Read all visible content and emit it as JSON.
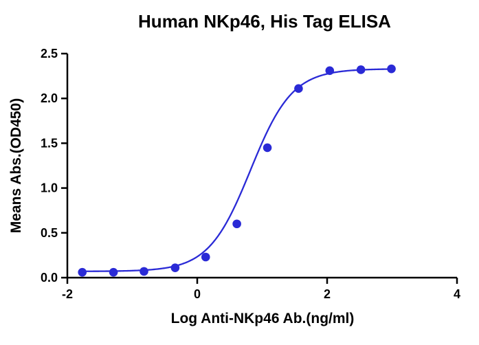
{
  "chart_data": {
    "type": "scatter",
    "title": "Human NKp46, His Tag ELISA",
    "xlabel": "Log Anti-NKp46 Ab.(ng/ml)",
    "ylabel": "Means Abs.(OD450)",
    "xlim": [
      -2,
      4
    ],
    "ylim": [
      0,
      2.5
    ],
    "xticks": [
      -2,
      0,
      2,
      4
    ],
    "yticks": [
      0.0,
      0.5,
      1.0,
      1.5,
      2.0,
      2.5
    ],
    "xtick_labels": [
      "-2",
      "0",
      "2",
      "4"
    ],
    "ytick_labels": [
      "0.0",
      "0.5",
      "1.0",
      "1.5",
      "2.0",
      "2.5"
    ],
    "grid": false,
    "series": [
      {
        "x": [
          -1.77,
          -1.29,
          -0.82,
          -0.34,
          0.13,
          0.61,
          1.08,
          1.56,
          2.04,
          2.52,
          2.99
        ],
        "y": [
          0.06,
          0.06,
          0.07,
          0.11,
          0.23,
          0.6,
          1.45,
          2.11,
          2.31,
          2.32,
          2.33
        ],
        "color": "#2a2ad6"
      }
    ],
    "fit_curve": {
      "bottom": 0.07,
      "top": 2.33,
      "log_ec50": 0.82,
      "hill_slope": 1.35,
      "color": "#2a2ad6"
    }
  }
}
